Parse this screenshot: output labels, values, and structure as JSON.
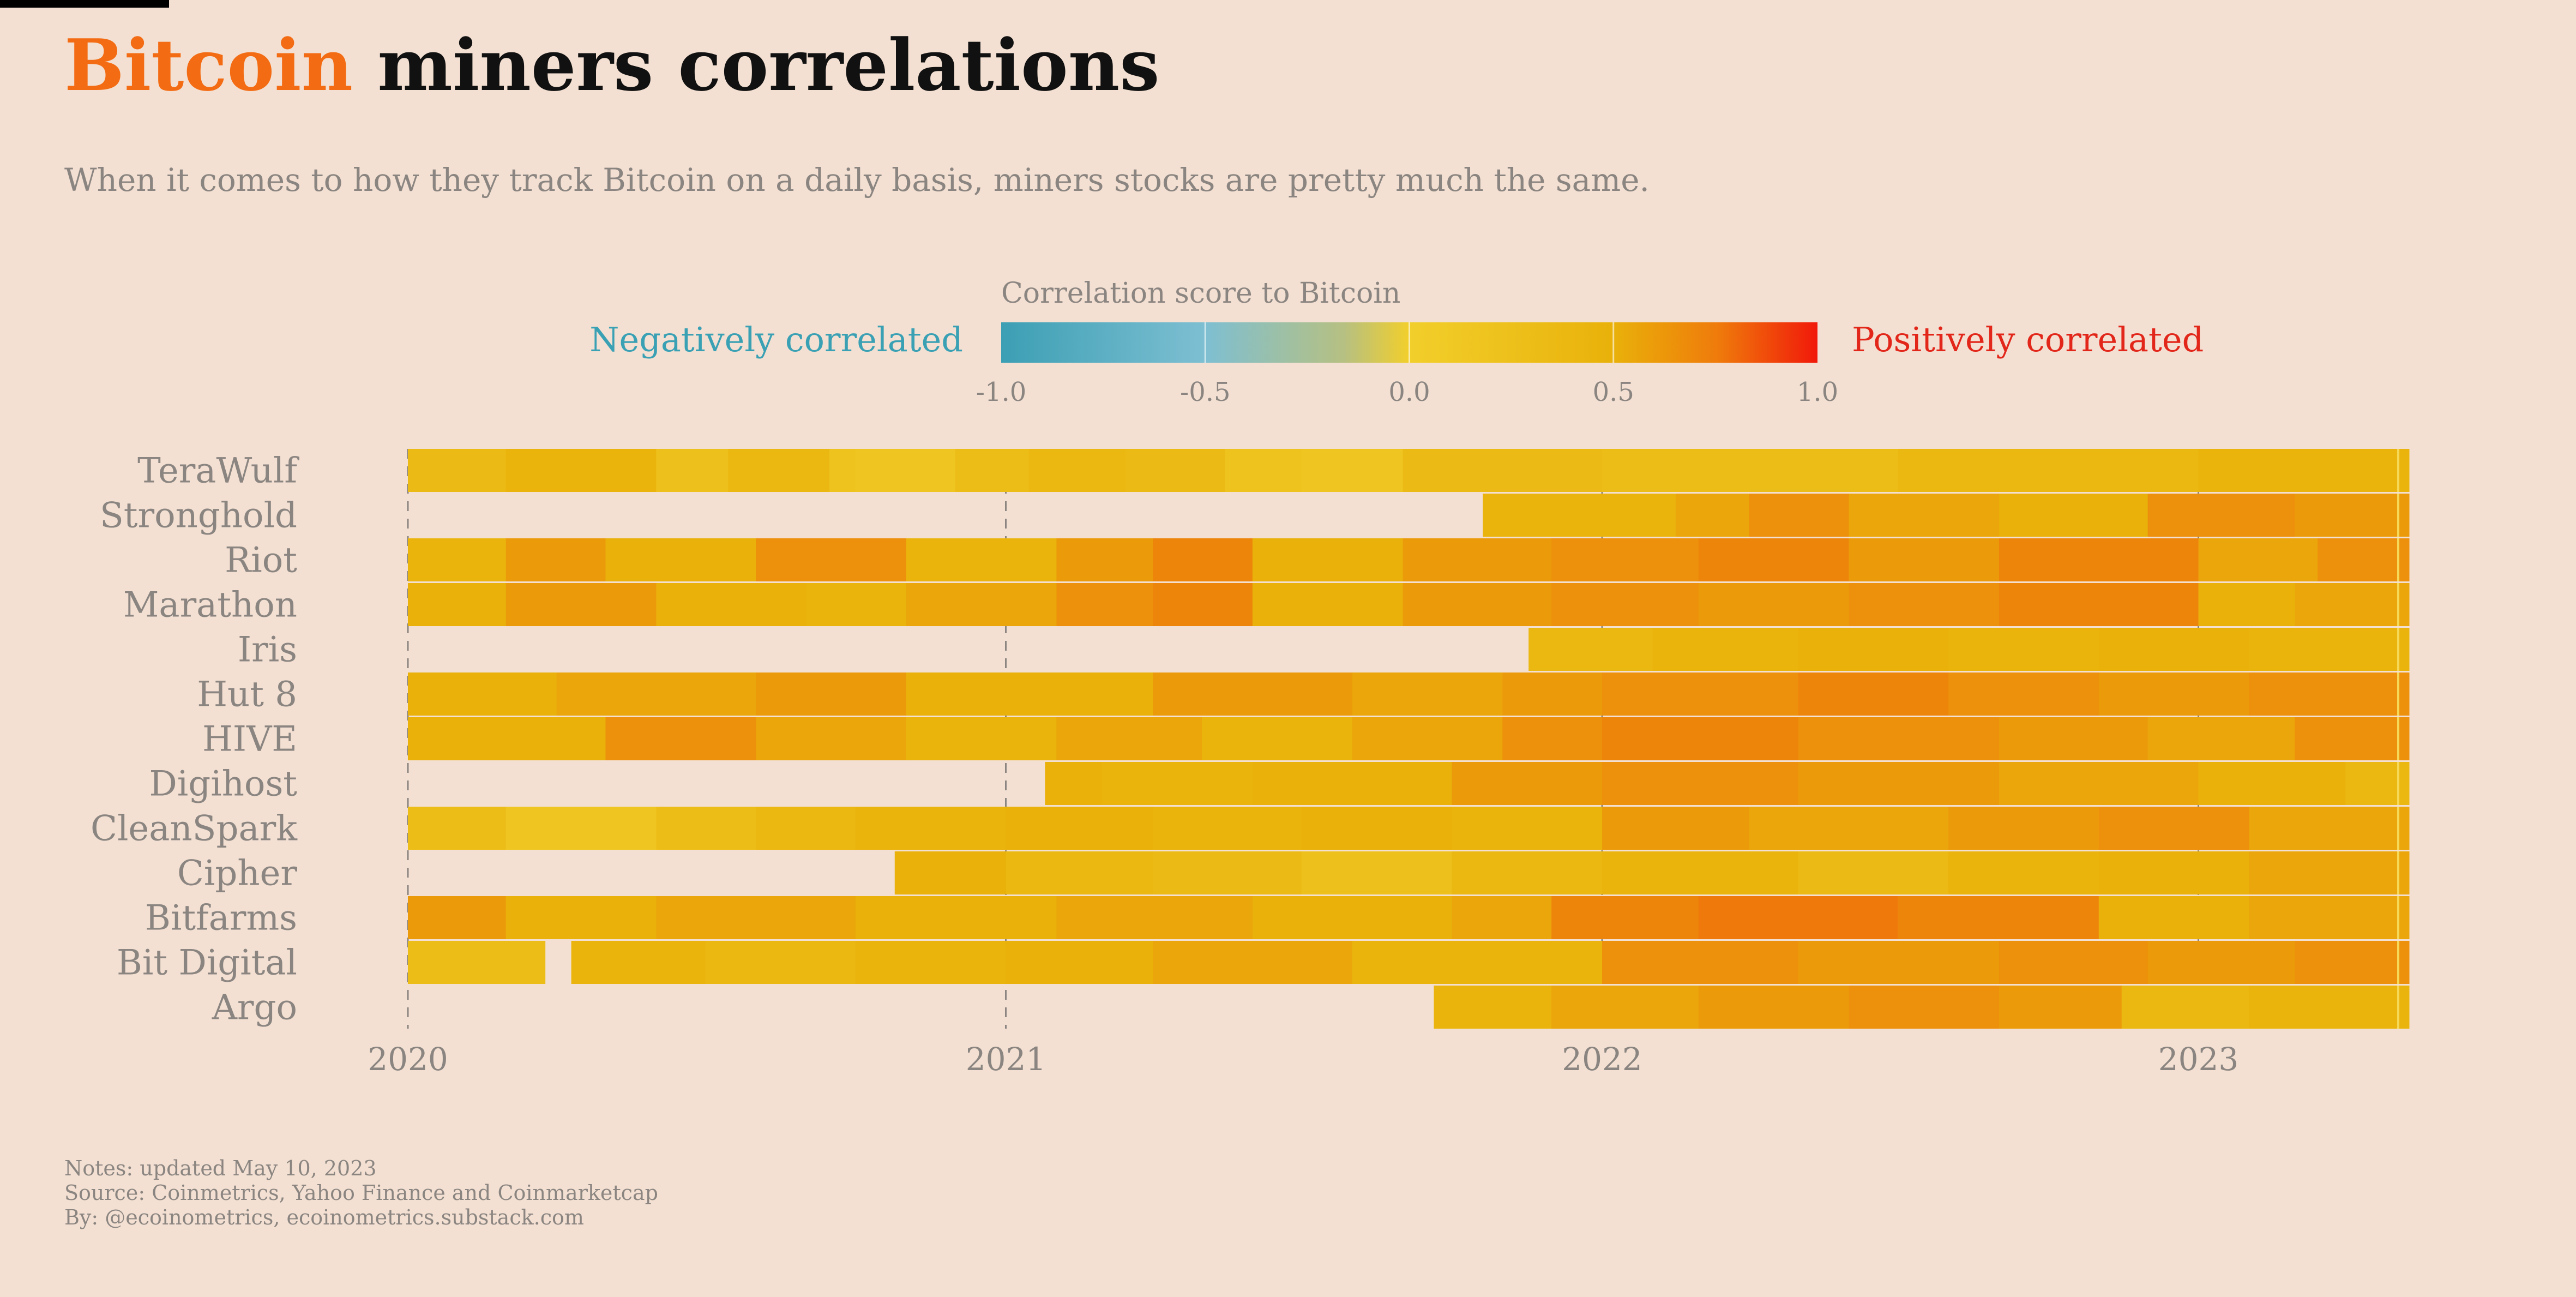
{
  "header": {
    "title_accent": "Bitcoin",
    "title_rest": " miners correlations",
    "subtitle": "When it comes to how they track Bitcoin on a daily basis, miners stocks are pretty much the same."
  },
  "notes": {
    "updated": "Notes: updated May 10, 2023",
    "source": "Source: Coinmetrics, Yahoo Finance and Coinmarketcap",
    "by": "By: @ecoinometrics, ecoinometrics.substack.com"
  },
  "colors": {
    "background": "#f3e0d2",
    "accent": "#f36b12",
    "negative": "#3aa0b4",
    "positive": "#e2261a"
  },
  "chart_data": {
    "type": "heatmap",
    "legend": {
      "title": "Correlation score to Bitcoin",
      "negative_label": "Negatively correlated",
      "positive_label": "Positively correlated",
      "ticks": [
        "-1.0",
        "-0.5",
        "0.0",
        "0.5",
        "1.0"
      ],
      "range": [
        -1,
        1
      ],
      "placement": "top-center"
    },
    "x_axis": {
      "ticks": [
        "2020",
        "2021",
        "2022",
        "2023"
      ],
      "range": [
        "2020-01-01",
        "2023-05-10"
      ]
    },
    "grid": false,
    "rows": [
      {
        "name": "TeraWulf",
        "start": "2020-01-01",
        "segments": [
          [
            "2020-01-01",
            0.35
          ],
          [
            "2020-03-01",
            0.45
          ],
          [
            "2020-06-01",
            0.25
          ],
          [
            "2020-07-15",
            0.4
          ],
          [
            "2020-09-15",
            0.2
          ],
          [
            "2020-10-01",
            0.15
          ],
          [
            "2020-12-01",
            0.3
          ],
          [
            "2021-01-15",
            0.4
          ],
          [
            "2021-03-15",
            0.35
          ],
          [
            "2021-05-15",
            0.2
          ],
          [
            "2021-07-01",
            0.15
          ],
          [
            "2021-09-01",
            0.35
          ],
          [
            "2022-01-01",
            0.3
          ],
          [
            "2022-07-01",
            0.4
          ],
          [
            "2023-01-01",
            0.45
          ]
        ]
      },
      {
        "name": "Stronghold",
        "start": "2021-10-20",
        "segments": [
          [
            "2021-10-20",
            0.45
          ],
          [
            "2022-02-15",
            0.55
          ],
          [
            "2022-04-01",
            0.65
          ],
          [
            "2022-06-01",
            0.55
          ],
          [
            "2022-09-01",
            0.5
          ],
          [
            "2022-12-01",
            0.65
          ],
          [
            "2023-03-01",
            0.6
          ]
        ]
      },
      {
        "name": "Riot",
        "start": "2020-01-01",
        "segments": [
          [
            "2020-01-01",
            0.45
          ],
          [
            "2020-03-01",
            0.6
          ],
          [
            "2020-05-01",
            0.5
          ],
          [
            "2020-08-01",
            0.65
          ],
          [
            "2020-11-01",
            0.45
          ],
          [
            "2021-02-01",
            0.6
          ],
          [
            "2021-04-01",
            0.7
          ],
          [
            "2021-06-01",
            0.5
          ],
          [
            "2021-09-01",
            0.6
          ],
          [
            "2021-12-01",
            0.65
          ],
          [
            "2022-03-01",
            0.7
          ],
          [
            "2022-06-01",
            0.6
          ],
          [
            "2022-09-01",
            0.7
          ],
          [
            "2023-01-01",
            0.55
          ],
          [
            "2023-03-15",
            0.65
          ]
        ]
      },
      {
        "name": "Marathon",
        "start": "2020-01-01",
        "segments": [
          [
            "2020-01-01",
            0.5
          ],
          [
            "2020-03-01",
            0.6
          ],
          [
            "2020-06-01",
            0.5
          ],
          [
            "2020-09-01",
            0.45
          ],
          [
            "2020-11-01",
            0.55
          ],
          [
            "2021-02-01",
            0.65
          ],
          [
            "2021-04-01",
            0.7
          ],
          [
            "2021-06-01",
            0.5
          ],
          [
            "2021-09-01",
            0.6
          ],
          [
            "2021-12-01",
            0.65
          ],
          [
            "2022-03-01",
            0.6
          ],
          [
            "2022-06-01",
            0.65
          ],
          [
            "2022-09-01",
            0.7
          ],
          [
            "2023-01-01",
            0.5
          ],
          [
            "2023-03-01",
            0.55
          ]
        ]
      },
      {
        "name": "Iris",
        "start": "2021-11-17",
        "segments": [
          [
            "2021-11-17",
            0.4
          ],
          [
            "2022-02-01",
            0.45
          ],
          [
            "2022-05-01",
            0.5
          ],
          [
            "2022-08-01",
            0.45
          ],
          [
            "2022-11-01",
            0.5
          ],
          [
            "2023-02-01",
            0.45
          ]
        ]
      },
      {
        "name": "Hut 8",
        "start": "2020-01-01",
        "segments": [
          [
            "2020-01-01",
            0.5
          ],
          [
            "2020-04-01",
            0.55
          ],
          [
            "2020-08-01",
            0.6
          ],
          [
            "2020-11-01",
            0.5
          ],
          [
            "2021-04-01",
            0.6
          ],
          [
            "2021-08-01",
            0.55
          ],
          [
            "2021-11-01",
            0.6
          ],
          [
            "2022-01-01",
            0.65
          ],
          [
            "2022-05-01",
            0.7
          ],
          [
            "2022-08-01",
            0.65
          ],
          [
            "2022-11-01",
            0.6
          ],
          [
            "2023-02-01",
            0.65
          ]
        ]
      },
      {
        "name": "HIVE",
        "start": "2020-01-01",
        "segments": [
          [
            "2020-01-01",
            0.5
          ],
          [
            "2020-05-01",
            0.65
          ],
          [
            "2020-08-01",
            0.55
          ],
          [
            "2020-11-01",
            0.45
          ],
          [
            "2021-02-01",
            0.55
          ],
          [
            "2021-05-01",
            0.45
          ],
          [
            "2021-08-01",
            0.55
          ],
          [
            "2021-11-01",
            0.65
          ],
          [
            "2022-01-01",
            0.7
          ],
          [
            "2022-05-01",
            0.65
          ],
          [
            "2022-09-01",
            0.6
          ],
          [
            "2022-12-01",
            0.55
          ],
          [
            "2023-03-01",
            0.65
          ]
        ]
      },
      {
        "name": "Digihost",
        "start": "2021-01-25",
        "segments": [
          [
            "2021-01-25",
            0.5
          ],
          [
            "2021-03-01",
            0.45
          ],
          [
            "2021-06-01",
            0.5
          ],
          [
            "2021-10-01",
            0.6
          ],
          [
            "2022-01-01",
            0.65
          ],
          [
            "2022-05-01",
            0.6
          ],
          [
            "2022-09-01",
            0.55
          ],
          [
            "2023-01-01",
            0.5
          ],
          [
            "2023-04-01",
            0.4
          ]
        ]
      },
      {
        "name": "CleanSpark",
        "start": "2020-01-01",
        "segments": [
          [
            "2020-01-01",
            0.3
          ],
          [
            "2020-03-01",
            0.15
          ],
          [
            "2020-06-01",
            0.3
          ],
          [
            "2020-08-01",
            0.4
          ],
          [
            "2020-10-01",
            0.45
          ],
          [
            "2021-01-01",
            0.5
          ],
          [
            "2021-04-01",
            0.45
          ],
          [
            "2021-07-01",
            0.5
          ],
          [
            "2021-10-01",
            0.45
          ],
          [
            "2022-01-01",
            0.6
          ],
          [
            "2022-04-01",
            0.55
          ],
          [
            "2022-08-01",
            0.6
          ],
          [
            "2022-11-01",
            0.65
          ],
          [
            "2023-02-01",
            0.55
          ]
        ]
      },
      {
        "name": "Cipher",
        "start": "2020-10-25",
        "segments": [
          [
            "2020-10-25",
            0.5
          ],
          [
            "2021-01-01",
            0.4
          ],
          [
            "2021-04-01",
            0.35
          ],
          [
            "2021-07-01",
            0.25
          ],
          [
            "2021-10-01",
            0.4
          ],
          [
            "2022-01-01",
            0.45
          ],
          [
            "2022-05-01",
            0.35
          ],
          [
            "2022-08-01",
            0.45
          ],
          [
            "2022-11-01",
            0.5
          ],
          [
            "2023-02-01",
            0.55
          ]
        ]
      },
      {
        "name": "Bitfarms",
        "start": "2020-01-01",
        "segments": [
          [
            "2020-01-01",
            0.6
          ],
          [
            "2020-03-01",
            0.5
          ],
          [
            "2020-06-01",
            0.55
          ],
          [
            "2020-10-01",
            0.5
          ],
          [
            "2021-02-01",
            0.55
          ],
          [
            "2021-06-01",
            0.5
          ],
          [
            "2021-10-01",
            0.55
          ],
          [
            "2021-12-01",
            0.7
          ],
          [
            "2022-03-01",
            0.75
          ],
          [
            "2022-07-01",
            0.7
          ],
          [
            "2022-11-01",
            0.5
          ],
          [
            "2023-02-01",
            0.55
          ]
        ]
      },
      {
        "name": "Bit Digital",
        "start": "2020-01-01",
        "segments": [
          [
            "2020-01-01",
            0.3
          ],
          [
            "2020-03-25",
            null
          ],
          [
            "2020-04-10",
            0.45
          ],
          [
            "2020-07-01",
            0.4
          ],
          [
            "2020-10-01",
            0.45
          ],
          [
            "2021-01-01",
            0.5
          ],
          [
            "2021-04-01",
            0.55
          ],
          [
            "2021-08-01",
            0.45
          ],
          [
            "2022-01-01",
            0.65
          ],
          [
            "2022-05-01",
            0.6
          ],
          [
            "2022-09-01",
            0.65
          ],
          [
            "2022-12-01",
            0.6
          ],
          [
            "2023-03-01",
            0.65
          ]
        ]
      },
      {
        "name": "Argo",
        "start": "2021-09-20",
        "segments": [
          [
            "2021-09-20",
            0.45
          ],
          [
            "2021-12-01",
            0.55
          ],
          [
            "2022-03-01",
            0.6
          ],
          [
            "2022-06-01",
            0.65
          ],
          [
            "2022-09-01",
            0.6
          ],
          [
            "2022-11-15",
            0.4
          ],
          [
            "2023-02-01",
            0.45
          ]
        ]
      }
    ]
  }
}
